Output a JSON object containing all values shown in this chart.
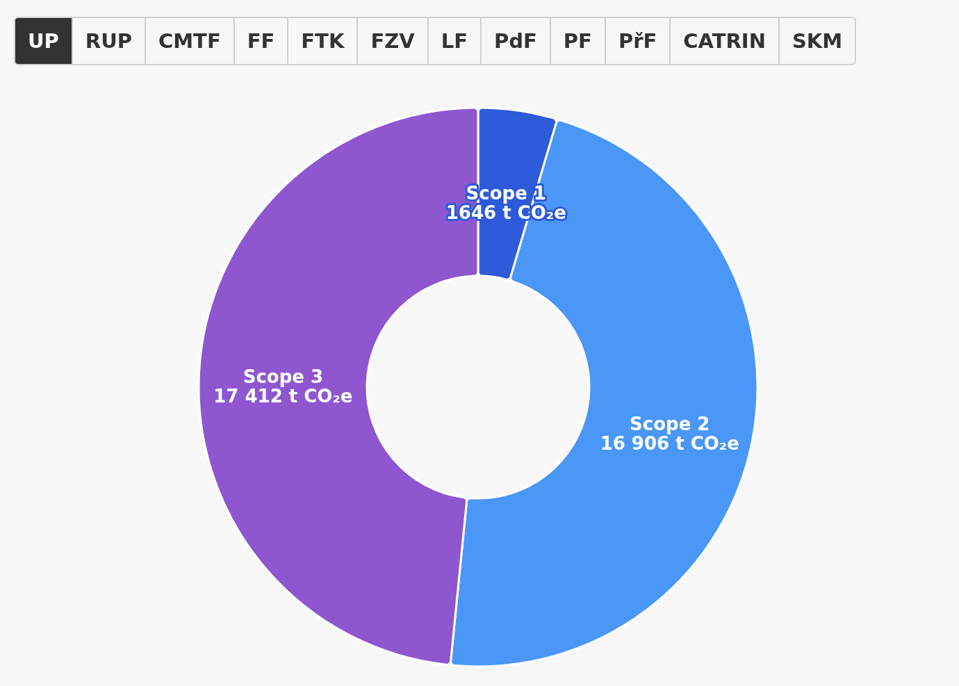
{
  "chart_data": {
    "type": "donut",
    "annotations": [
      "UP",
      "RUP",
      "CMTF",
      "FF",
      "FTK",
      "FZV",
      "LF",
      "PdF",
      "PF",
      "PřF",
      "CATRIN",
      "SKM"
    ],
    "categories": [
      "Scope 1",
      "Scope 2",
      "Scope 3"
    ],
    "values": [
      1646,
      16906,
      17412
    ],
    "value_labels": [
      "1646 t CO₂e",
      "16 906 t CO₂e",
      "17 412 t CO₂e"
    ],
    "colors": [
      "#2d5bd9",
      "#4a97f7",
      "#8e57d0"
    ]
  }
}
